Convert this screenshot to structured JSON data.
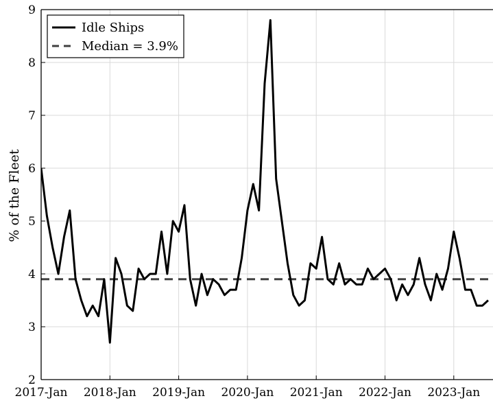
{
  "chart_data": {
    "type": "line",
    "title": "",
    "xlabel": "",
    "ylabel": "% of the Fleet",
    "ylim": [
      2,
      9
    ],
    "xlim": [
      "2017-01",
      "2023-07"
    ],
    "grid": true,
    "legend_position": "top-left",
    "xtick_labels": [
      "2017-Jan",
      "2018-Jan",
      "2019-Jan",
      "2020-Jan",
      "2021-Jan",
      "2022-Jan",
      "2023-Jan"
    ],
    "ytick_labels": [
      "2",
      "3",
      "4",
      "5",
      "6",
      "7",
      "8",
      "9"
    ],
    "x": [
      "2017-01",
      "2017-02",
      "2017-03",
      "2017-04",
      "2017-05",
      "2017-06",
      "2017-07",
      "2017-08",
      "2017-09",
      "2017-10",
      "2017-11",
      "2017-12",
      "2018-01",
      "2018-02",
      "2018-03",
      "2018-04",
      "2018-05",
      "2018-06",
      "2018-07",
      "2018-08",
      "2018-09",
      "2018-10",
      "2018-11",
      "2018-12",
      "2019-01",
      "2019-02",
      "2019-03",
      "2019-04",
      "2019-05",
      "2019-06",
      "2019-07",
      "2019-08",
      "2019-09",
      "2019-10",
      "2019-11",
      "2019-12",
      "2020-01",
      "2020-02",
      "2020-03",
      "2020-04",
      "2020-05",
      "2020-06",
      "2020-07",
      "2020-08",
      "2020-09",
      "2020-10",
      "2020-11",
      "2020-12",
      "2021-01",
      "2021-02",
      "2021-03",
      "2021-04",
      "2021-05",
      "2021-06",
      "2021-07",
      "2021-08",
      "2021-09",
      "2021-10",
      "2021-11",
      "2021-12",
      "2022-01",
      "2022-02",
      "2022-03",
      "2022-04",
      "2022-05",
      "2022-06",
      "2022-07",
      "2022-08",
      "2022-09",
      "2022-10",
      "2022-11",
      "2022-12",
      "2023-01",
      "2023-02",
      "2023-03",
      "2023-04",
      "2023-05",
      "2023-06",
      "2023-07"
    ],
    "series": [
      {
        "name": "Idle Ships",
        "color": "#000000",
        "style": "solid",
        "values": [
          6.0,
          5.1,
          4.5,
          4.0,
          4.7,
          5.2,
          3.9,
          3.5,
          3.2,
          3.4,
          3.2,
          3.9,
          2.7,
          4.3,
          4.0,
          3.4,
          3.3,
          4.1,
          3.9,
          4.0,
          4.0,
          4.8,
          4.0,
          5.0,
          4.8,
          5.3,
          3.9,
          3.4,
          4.0,
          3.6,
          3.9,
          3.8,
          3.6,
          3.7,
          3.7,
          4.3,
          5.2,
          5.7,
          5.2,
          7.6,
          8.8,
          5.8,
          5.0,
          4.2,
          3.6,
          3.4,
          3.5,
          4.2,
          4.1,
          4.7,
          3.9,
          3.8,
          4.2,
          3.8,
          3.9,
          3.8,
          3.8,
          4.1,
          3.9,
          4.0,
          4.1,
          3.9,
          3.5,
          3.8,
          3.6,
          3.8,
          4.3,
          3.8,
          3.5,
          4.0,
          3.7,
          4.1,
          4.8,
          4.3,
          3.7,
          3.7,
          3.4,
          3.4,
          3.5
        ]
      },
      {
        "name": "Median = 3.9%",
        "color": "#404040",
        "style": "dashed",
        "constant": 3.9
      }
    ]
  }
}
